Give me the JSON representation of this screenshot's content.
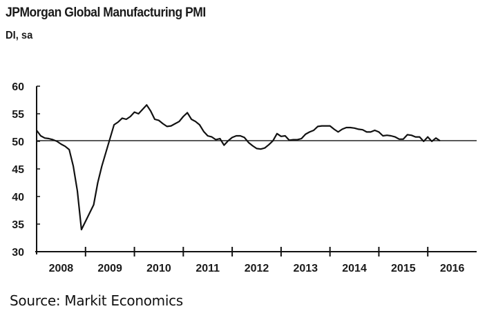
{
  "chart_data": {
    "type": "line",
    "title": "JPMorgan Global Manufacturing PMI",
    "ylabel": "DI, sa",
    "xlabel": "",
    "ylim": [
      30,
      60
    ],
    "yticks": [
      30,
      35,
      40,
      45,
      50,
      55,
      60
    ],
    "xlim_years": [
      2008,
      2017
    ],
    "xticks": [
      "2008",
      "2009",
      "2010",
      "2011",
      "2012",
      "2013",
      "2014",
      "2015",
      "2016"
    ],
    "reference_line": 50,
    "grid": false,
    "start": "2008-01",
    "frequency": "monthly",
    "series": [
      {
        "name": "JPMorgan Global Manufacturing PMI",
        "color": "#111111",
        "values": [
          52,
          51,
          50.6,
          50.5,
          50.3,
          50,
          49.5,
          49.1,
          48.5,
          45.5,
          41,
          34,
          35.5,
          37,
          38.5,
          42.5,
          45.5,
          48,
          50.5,
          53,
          53.5,
          54.2,
          54,
          54.5,
          55.3,
          55,
          55.8,
          56.6,
          55.5,
          54,
          53.8,
          53.2,
          52.7,
          52.8,
          53.2,
          53.6,
          54.5,
          55.2,
          54,
          53.6,
          53,
          51.8,
          51,
          50.8,
          50.3,
          50.5,
          49.3,
          50.1,
          50.7,
          51,
          51,
          50.7,
          49.8,
          49.2,
          48.7,
          48.6,
          48.8,
          49.4,
          50.1,
          51.4,
          50.9,
          51,
          50.2,
          50.3,
          50.3,
          50.5,
          51.3,
          51.7,
          52,
          52.7,
          52.8,
          52.8,
          52.8,
          52.2,
          51.7,
          52.2,
          52.5,
          52.5,
          52.4,
          52.2,
          52.1,
          51.7,
          51.7,
          52,
          51.7,
          51,
          51.1,
          51,
          50.8,
          50.4,
          50.4,
          51.2,
          51.1,
          50.8,
          50.8,
          50,
          50.8,
          50,
          50.6,
          50.1
        ]
      }
    ]
  },
  "source": "Source: Markit Economics"
}
